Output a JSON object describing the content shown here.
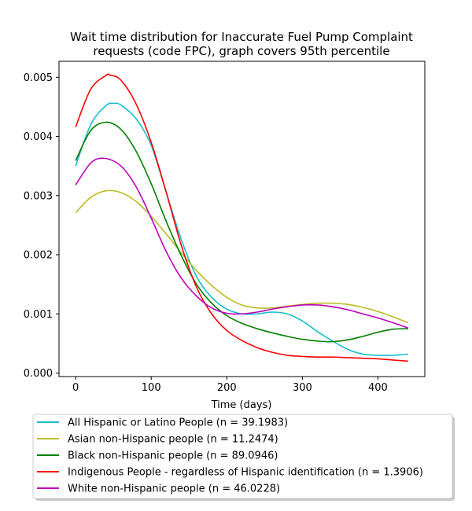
{
  "chart_data": {
    "type": "line",
    "title_lines": [
      "Wait time distribution  for Inaccurate Fuel Pump Complaint",
      "requests (code FPC), graph covers 95th percentile"
    ],
    "xlabel": "Time (days)",
    "ylabel": "",
    "xlim": [
      -22,
      462
    ],
    "ylim": [
      -6e-05,
      0.00527
    ],
    "xticks": [
      0,
      100,
      200,
      300,
      400
    ],
    "yticks": [
      0.0,
      0.001,
      0.002,
      0.003,
      0.004,
      0.005
    ],
    "ytick_labels": [
      "0.000",
      "0.001",
      "0.002",
      "0.003",
      "0.004",
      "0.005"
    ],
    "grid": false,
    "legend_position": "below",
    "series": [
      {
        "name": "All Hispanic or Latino People (n = 39.1983)",
        "color": "#17becf",
        "x": [
          0,
          20,
          40,
          50,
          60,
          80,
          100,
          120,
          140,
          160,
          180,
          200,
          220,
          240,
          260,
          280,
          300,
          320,
          340,
          360,
          380,
          400,
          420,
          440
        ],
        "y": [
          0.0035,
          0.0042,
          0.00452,
          0.00456,
          0.00453,
          0.0043,
          0.00385,
          0.00305,
          0.00225,
          0.00163,
          0.00128,
          0.00108,
          0.001,
          0.001,
          0.00103,
          0.001,
          0.00088,
          0.0007,
          0.00054,
          0.0004,
          0.00032,
          0.0003,
          0.0003,
          0.00032
        ]
      },
      {
        "name": "Asian non-Hispanic people (n = 11.2474)",
        "color": "#bcbd22",
        "x": [
          0,
          20,
          40,
          60,
          80,
          100,
          120,
          140,
          160,
          180,
          200,
          220,
          240,
          260,
          280,
          300,
          320,
          340,
          360,
          380,
          400,
          420,
          440
        ],
        "y": [
          0.00271,
          0.00297,
          0.00308,
          0.00305,
          0.0029,
          0.00265,
          0.00235,
          0.00203,
          0.00173,
          0.00148,
          0.00128,
          0.00115,
          0.0011,
          0.0011,
          0.00113,
          0.00116,
          0.00118,
          0.00118,
          0.00116,
          0.00111,
          0.00104,
          0.00095,
          0.00085
        ]
      },
      {
        "name": "Black non-Hispanic people (n = 89.0946)",
        "color": "#008000",
        "x": [
          0,
          20,
          40,
          60,
          80,
          100,
          120,
          140,
          160,
          180,
          200,
          220,
          240,
          260,
          280,
          300,
          320,
          340,
          360,
          380,
          400,
          420,
          440
        ],
        "y": [
          0.00359,
          0.0041,
          0.00424,
          0.00412,
          0.00375,
          0.0032,
          0.00256,
          0.00198,
          0.0015,
          0.00118,
          0.00097,
          0.00084,
          0.00075,
          0.00068,
          0.00062,
          0.00057,
          0.00054,
          0.00053,
          0.00056,
          0.00062,
          0.00069,
          0.00074,
          0.00075
        ]
      },
      {
        "name": "Indigenous People - regardless of Hispanic identification (n = 1.3906)",
        "color": "#ff0000",
        "x": [
          0,
          20,
          40,
          45,
          60,
          80,
          100,
          120,
          140,
          160,
          180,
          200,
          220,
          240,
          260,
          280,
          300,
          320,
          340,
          360,
          380,
          400,
          420,
          440
        ],
        "y": [
          0.00416,
          0.0048,
          0.00503,
          0.00504,
          0.00495,
          0.00455,
          0.0039,
          0.00305,
          0.00215,
          0.00145,
          0.001,
          0.00072,
          0.00055,
          0.00043,
          0.00035,
          0.0003,
          0.00028,
          0.00027,
          0.00027,
          0.00026,
          0.00025,
          0.00024,
          0.00022,
          0.0002
        ]
      },
      {
        "name": "White non-Hispanic people (n = 46.0228)",
        "color": "#bf00bf",
        "x": [
          0,
          20,
          38,
          60,
          80,
          100,
          120,
          140,
          160,
          180,
          200,
          220,
          240,
          260,
          280,
          300,
          320,
          340,
          360,
          380,
          400,
          420,
          440
        ],
        "y": [
          0.00318,
          0.00355,
          0.00363,
          0.0035,
          0.00315,
          0.00262,
          0.00205,
          0.0016,
          0.0013,
          0.0011,
          0.00101,
          0.001,
          0.00103,
          0.00108,
          0.00112,
          0.00115,
          0.00115,
          0.00112,
          0.00107,
          0.001,
          0.00093,
          0.00085,
          0.00076
        ]
      }
    ]
  }
}
